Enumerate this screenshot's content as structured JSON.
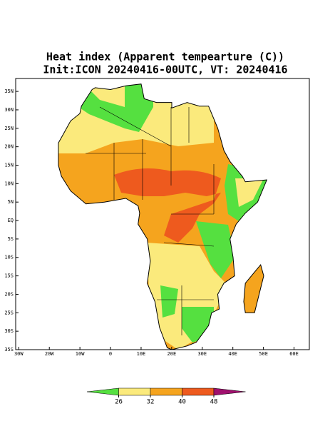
{
  "title": "Heat index (Apparent tempearture (C))",
  "subtitle": "Init:ICON 20240416-00UTC, VT: 20240416",
  "map": {
    "xlim": [
      -31,
      65
    ],
    "ylim": [
      -35,
      38.5
    ],
    "xticks": [
      {
        "value": -30,
        "label": "30W"
      },
      {
        "value": -20,
        "label": "20W"
      },
      {
        "value": -10,
        "label": "10W"
      },
      0,
      {
        "value": 10,
        "label": "10E"
      },
      {
        "value": 20,
        "label": "20E"
      },
      {
        "value": 30,
        "label": "30E"
      },
      {
        "value": 40,
        "label": "40E"
      },
      {
        "value": 50,
        "label": "50E"
      },
      {
        "value": 60,
        "label": "60E"
      }
    ],
    "yticks": [
      {
        "value": 35,
        "label": "35N"
      },
      {
        "value": 30,
        "label": "30N"
      },
      {
        "value": 25,
        "label": "25N"
      },
      {
        "value": 20,
        "label": "20N"
      },
      {
        "value": 15,
        "label": "15N"
      },
      {
        "value": 10,
        "label": "10N"
      },
      {
        "value": 5,
        "label": "5N"
      },
      {
        "value": 0,
        "label": "EQ"
      },
      {
        "value": -5,
        "label": "5S"
      },
      {
        "value": -10,
        "label": "10S"
      },
      {
        "value": -15,
        "label": "15S"
      },
      {
        "value": -20,
        "label": "20S"
      },
      {
        "value": -25,
        "label": "25S"
      },
      {
        "value": -30,
        "label": "30S"
      },
      {
        "value": -35,
        "label": "35S"
      }
    ]
  },
  "colorbar": {
    "levels": [
      26,
      32,
      40,
      48
    ],
    "colors": [
      "#55e040",
      "#fbea7c",
      "#f5a41e",
      "#ee5a1e",
      "#a0106e"
    ]
  }
}
